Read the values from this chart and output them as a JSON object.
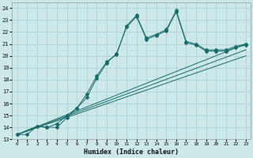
{
  "title": "",
  "xlabel": "Humidex (Indice chaleur)",
  "xlim": [
    -0.5,
    23.5
  ],
  "ylim": [
    13,
    24.5
  ],
  "xticks": [
    0,
    1,
    2,
    3,
    4,
    5,
    6,
    7,
    8,
    9,
    10,
    11,
    12,
    13,
    14,
    15,
    16,
    17,
    18,
    19,
    20,
    21,
    22,
    23
  ],
  "yticks": [
    13,
    14,
    15,
    16,
    17,
    18,
    19,
    20,
    21,
    22,
    23,
    24
  ],
  "bg_color": "#cce8e8",
  "grid_color": "#aacece",
  "line_color": "#1a6b6b",
  "line1_x": [
    0,
    1,
    2,
    3,
    4,
    5,
    6,
    7,
    8,
    9,
    10,
    11,
    12,
    13,
    14,
    15,
    16,
    17,
    18,
    19,
    20,
    21,
    22,
    23
  ],
  "line1_y": [
    13.4,
    13.4,
    14.1,
    14.0,
    14.0,
    14.8,
    15.6,
    16.8,
    18.3,
    19.5,
    20.1,
    22.5,
    23.4,
    21.5,
    21.8,
    22.2,
    23.8,
    21.2,
    21.0,
    20.5,
    20.5,
    20.5,
    20.8,
    21.0
  ],
  "line2_x": [
    0,
    2,
    3,
    4,
    5,
    6,
    7,
    8,
    9,
    10,
    11,
    12,
    13,
    14,
    15,
    16,
    17,
    18,
    19,
    20,
    21,
    22,
    23
  ],
  "line2_y": [
    13.4,
    14.1,
    14.0,
    14.3,
    15.0,
    15.6,
    16.5,
    18.1,
    19.4,
    20.2,
    22.4,
    23.3,
    21.4,
    21.7,
    22.1,
    23.7,
    21.1,
    20.9,
    20.4,
    20.4,
    20.4,
    20.7,
    20.9
  ],
  "line3_y_end": 21.0,
  "line4_y_end": 20.5,
  "line5_y_end": 20.0,
  "line_start_x": 0,
  "line_start_y": 13.4,
  "line_end_x": 23
}
